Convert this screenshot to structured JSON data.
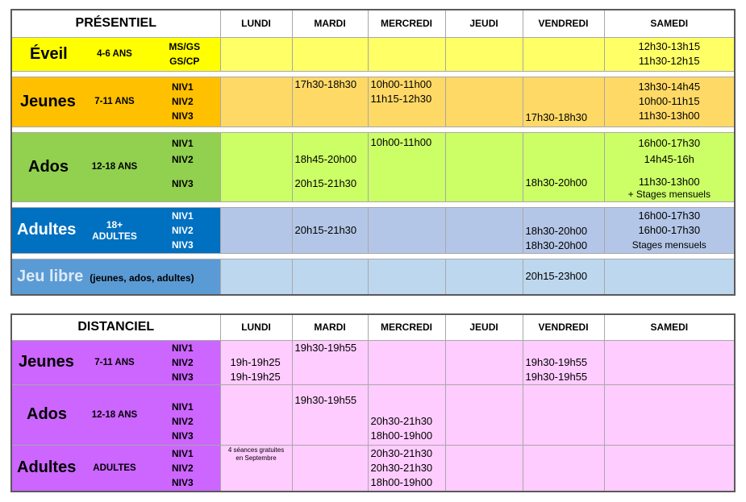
{
  "presentiel": {
    "title": "PRÉSENTIEL",
    "days": [
      "LUNDI",
      "MARDI",
      "MERCREDI",
      "JEUDI",
      "VENDREDI",
      "SAMEDI"
    ],
    "eveil": {
      "name": "Éveil",
      "age": "4-6 ANS",
      "levels": [
        "MS/GS",
        "GS/CP"
      ],
      "samedi": [
        "12h30-13h15",
        "11h30-12h15"
      ]
    },
    "jeunes": {
      "name": "Jeunes",
      "age": "7-11 ANS",
      "levels": [
        "NIV1",
        "NIV2",
        "NIV3"
      ],
      "mardi": [
        "17h30-18h30"
      ],
      "mercredi": [
        "10h00-11h00",
        "11h15-12h30"
      ],
      "vendredi": [
        "17h30-18h30"
      ],
      "samedi": [
        "13h30-14h45",
        "10h00-11h15",
        "11h30-13h00"
      ]
    },
    "ados": {
      "name": "Ados",
      "age": "12-18 ANS",
      "levels": [
        "NIV1",
        "NIV2",
        "NIV3"
      ],
      "mardi": [
        "18h45-20h00",
        "20h15-21h30"
      ],
      "mercredi": [
        "10h00-11h00"
      ],
      "vendredi": [
        "18h30-20h00"
      ],
      "samedi": [
        "16h00-17h30",
        "14h45-16h",
        "11h30-13h00",
        "+ Stages mensuels"
      ]
    },
    "adultes": {
      "name": "Adultes",
      "age_line1": "18+",
      "age_line2": "ADULTES",
      "levels": [
        "NIV1",
        "NIV2",
        "NIV3"
      ],
      "mardi": [
        "20h15-21h30"
      ],
      "vendredi": [
        "18h30-20h00",
        "18h30-20h00"
      ],
      "samedi": [
        "16h00-17h30",
        "16h00-17h30",
        "Stages mensuels"
      ]
    },
    "jeulibre": {
      "name": "Jeu libre",
      "sub": "(jeunes, ados, adultes)",
      "vendredi": [
        "20h15-23h00"
      ]
    }
  },
  "distanciel": {
    "title": "DISTANCIEL",
    "days": [
      "LUNDI",
      "MARDI",
      "MERCREDI",
      "JEUDI",
      "VENDREDI",
      "SAMEDI"
    ],
    "jeunes": {
      "name": "Jeunes",
      "age": "7-11 ANS",
      "levels": [
        "NIV1",
        "NIV2",
        "NIV3"
      ],
      "lundi": [
        "19h-19h25",
        "19h-19h25"
      ],
      "mardi": [
        "19h30-19h55"
      ],
      "vendredi": [
        "19h30-19h55",
        "19h30-19h55"
      ]
    },
    "ados": {
      "name": "Ados",
      "age": "12-18 ANS",
      "levels": [
        "NIV1",
        "NIV2",
        "NIV3"
      ],
      "mardi": [
        "19h30-19h55"
      ],
      "mercredi": [
        "20h30-21h30",
        "18h00-19h00"
      ]
    },
    "adultes": {
      "name": "Adultes",
      "age": "ADULTES",
      "levels": [
        "NIV1",
        "NIV2",
        "NIV3"
      ],
      "lundi_note": [
        "4 séances gratuites",
        "en Septembre"
      ],
      "mercredi": [
        "20h30-21h30",
        "20h30-21h30",
        "18h00-19h00"
      ]
    }
  },
  "colors": {
    "eveil_cat": "#ffff00",
    "eveil_row": "#ffff66",
    "jeunes_cat": "#ffc000",
    "jeunes_row": "#ffd966",
    "ados_cat": "#92d050",
    "ados_row": "#ccff66",
    "adultes_cat": "#0070c0",
    "adultes_row": "#b4c6e7",
    "jeulibre_cat": "#5b9bd5",
    "jeulibre_row": "#bdd7ee",
    "dist_cat": "#cc66ff",
    "dist_row": "#ffccff"
  }
}
